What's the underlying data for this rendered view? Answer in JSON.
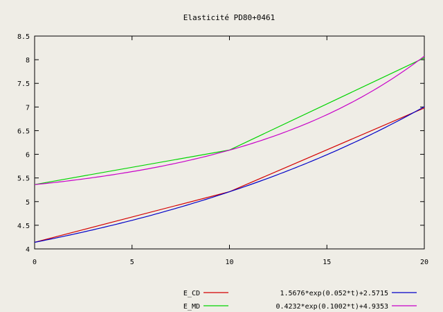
{
  "chart_data": {
    "type": "line",
    "title": "Elasticité PD80+0461",
    "xlabel": "",
    "ylabel": "",
    "xlim": [
      0,
      20
    ],
    "ylim": [
      4,
      8.5
    ],
    "x_ticks": [
      "0",
      "5",
      "10",
      "15",
      "20"
    ],
    "y_ticks": [
      "4",
      "4.5",
      "5",
      "5.5",
      "6",
      "6.5",
      "7",
      "7.5",
      "8",
      "8.5"
    ],
    "grid": false,
    "legend_position": "bottom",
    "series": [
      {
        "name": "E_CD",
        "color": "#d40000",
        "kind": "points",
        "x": [
          0,
          10,
          20
        ],
        "y": [
          4.14,
          5.21,
          6.98
        ]
      },
      {
        "name": "E_MD",
        "color": "#00d400",
        "kind": "points",
        "x": [
          0,
          10,
          20
        ],
        "y": [
          5.36,
          6.09,
          8.04
        ]
      },
      {
        "name": "1.5676*exp(0.052*t)+2.5715",
        "color": "#0000c8",
        "kind": "function",
        "a": 1.5676,
        "b": 0.052,
        "c": 2.5715
      },
      {
        "name": "0.4232*exp(0.1002*t)+4.9353",
        "color": "#c800c8",
        "kind": "function",
        "a": 0.4232,
        "b": 0.1002,
        "c": 4.9353
      }
    ]
  }
}
